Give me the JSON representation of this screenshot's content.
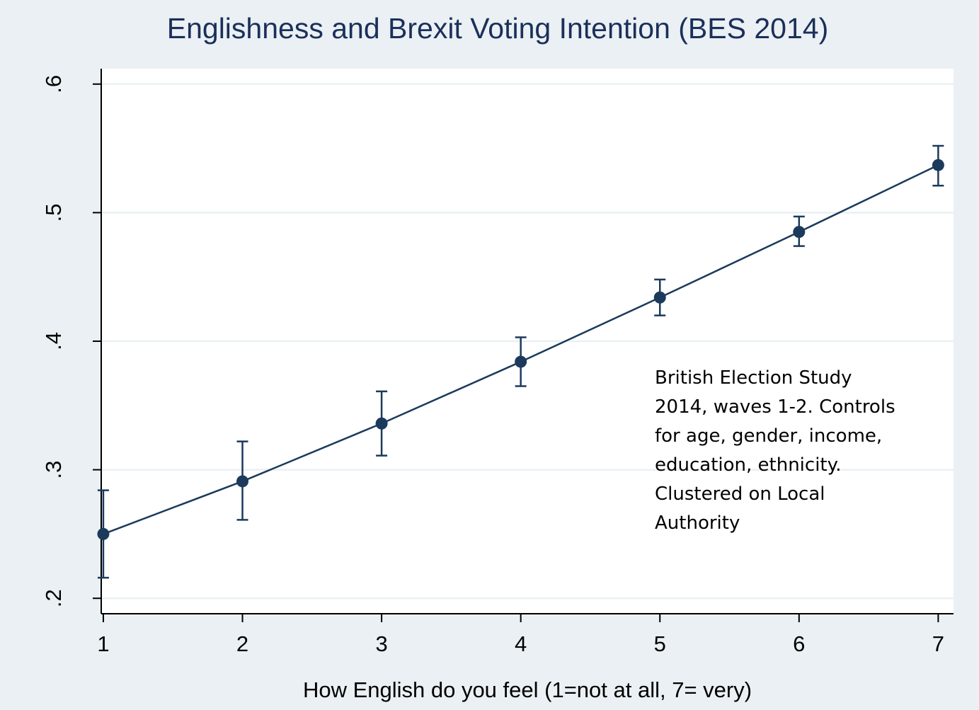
{
  "chart_data": {
    "type": "line",
    "title": "Englishness and Brexit Voting Intention (BES 2014)",
    "xlabel": "How English do you feel (1=not at all, 7= very)",
    "ylabel": "",
    "x": [
      1,
      2,
      3,
      4,
      5,
      6,
      7
    ],
    "xticks": [
      "1",
      "2",
      "3",
      "4",
      "5",
      "6",
      "7"
    ],
    "yticks": [
      ".2",
      ".3",
      ".4",
      ".5",
      ".6"
    ],
    "ytick_values": [
      0.2,
      0.3,
      0.4,
      0.5,
      0.6
    ],
    "xlim": [
      0.985,
      7.11
    ],
    "ylim": [
      0.188,
      0.612
    ],
    "grid": "horizontal",
    "series": [
      {
        "values": [
          0.25,
          0.291,
          0.336,
          0.384,
          0.434,
          0.485,
          0.537
        ],
        "ci_lower": [
          0.216,
          0.261,
          0.311,
          0.365,
          0.42,
          0.474,
          0.521
        ],
        "ci_upper": [
          0.284,
          0.322,
          0.361,
          0.403,
          0.448,
          0.497,
          0.552
        ],
        "color": "#1b3a5c"
      }
    ],
    "annotation": [
      "British Election Study",
      "2014, waves 1-2. Controls",
      "for age, gender, income,",
      "education, ethnicity.",
      "Clustered on Local",
      "Authority"
    ],
    "colors": {
      "background": "#eaf0f3",
      "plot_background": "#ffffff",
      "grid": "#eaf0f3",
      "title": "#1b2f5a",
      "series": "#1b3a5c"
    }
  }
}
